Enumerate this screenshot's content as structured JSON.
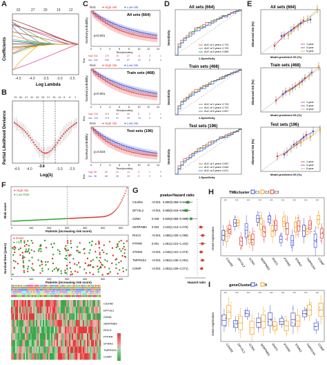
{
  "panel_labels": [
    "A",
    "B",
    "C",
    "D",
    "E",
    "F",
    "G",
    "H",
    "I"
  ],
  "A": {
    "ylabel": "Coefficients",
    "xlabel": "Log Lambda",
    "top_ticks": [
      "62",
      "27",
      "20",
      "19",
      "12"
    ],
    "xticks": [
      "-4.5",
      "-4.0",
      "-3.5",
      "-3.0",
      "-2.5"
    ]
  },
  "B": {
    "ylabel": "Partial Likelihood Deviance",
    "xlabel": "Log(λ)",
    "top_ticks": [
      "76",
      "60",
      "47",
      "42",
      "33",
      "25",
      "21",
      "19",
      "13",
      "8",
      "5",
      "1"
    ],
    "xticks": [
      "-4.5",
      "-4.0",
      "-3.5",
      "-3.0",
      "-2.5"
    ],
    "vline_label": "-3.8"
  },
  "C": {
    "ylabel": "Survival probability",
    "xlabel": "Time(months)",
    "risk_label": "Risk",
    "legend": [
      "Risk",
      "High risk",
      "Low risk"
    ],
    "plots": [
      {
        "title": "All sets (664)",
        "p": "p<0.001",
        "table": [
          [
            "high",
            "332",
            "170",
            "76",
            "37",
            "11",
            "3",
            "1"
          ],
          [
            "low",
            "332",
            "249",
            "139",
            "57",
            "22",
            "6",
            "0"
          ]
        ]
      },
      {
        "title": "Train sets (468)",
        "p": "p<0.001",
        "table": [
          [
            "high",
            "234",
            "119",
            "53",
            "28",
            "8",
            "2",
            "1"
          ],
          [
            "low",
            "234",
            "173",
            "97",
            "39",
            "15",
            "4",
            "0"
          ]
        ]
      },
      {
        "title": "Test sets (196)",
        "p": "p=0.023",
        "table": [
          [
            "high",
            "98",
            "60",
            "31",
            "13",
            "5",
            "1",
            "0"
          ],
          [
            "low",
            "98",
            "68",
            "35",
            "19",
            "5",
            "2",
            "0"
          ]
        ]
      }
    ],
    "xticks": [
      "0",
      "2",
      "4",
      "6",
      "8",
      "10",
      "12",
      "14"
    ]
  },
  "D": {
    "ylabel": "Sensitivity",
    "xlabel": "1-Specificity",
    "plots": [
      {
        "title": "All sets (664)",
        "auc": [
          "AUC at 1 years: 0.714",
          "AUC at 3 years: 0.703",
          "AUC at 5 years: 0.689"
        ]
      },
      {
        "title": "Train sets (468)",
        "auc": [
          "AUC at 1 years: 0.734",
          "AUC at 3 years: 0.722",
          "AUC at 5 years: 0.697"
        ]
      },
      {
        "title": "Test sets (196)",
        "auc": [
          "AUC at 1 years: 0.657",
          "AUC at 3 years: 0.649",
          "AUC at 5 years: 0.671"
        ]
      }
    ]
  },
  "E": {
    "ylabel": "Observed OS (%)",
    "xlabel": "Model-predicted OS (%)",
    "plots": [
      {
        "title": "All sets (664)",
        "legend": [
          "1-year",
          "3-year",
          "5-year"
        ]
      },
      {
        "title": "Train sets (468)",
        "legend": [
          "1-year",
          "3-year",
          "5-year"
        ]
      },
      {
        "title": "Test sets (196)",
        "legend": [
          "1-year",
          "3-year",
          "5-year"
        ]
      }
    ]
  },
  "F": {
    "risk": {
      "ylabel": "Risk score",
      "xlabel": "Patients (increasing risk score)",
      "legend": [
        "High risk",
        "Low Risk"
      ],
      "xticks": [
        "0",
        "100",
        "200",
        "300",
        "400",
        "500",
        "600"
      ]
    },
    "surv": {
      "ylabel": "Survival time (years)",
      "xlabel": "Patients (increasing risk score)",
      "legend": [
        "Dead",
        "Alive"
      ],
      "xticks": [
        "0",
        "100",
        "200",
        "300",
        "400",
        "500",
        "600"
      ]
    },
    "genes": [
      "C3orf82",
      "DPYSL2",
      "GZMA",
      "SERPINB3",
      "RHCG",
      "PTPRR",
      "STMN3",
      "TMPRSS4",
      "COMP"
    ]
  },
  "G": {
    "header": [
      "pvalue",
      "Hazard ratio"
    ],
    "rows": [
      {
        "gene": "C3orf82",
        "p": "<0.001",
        "hr": "0.890(0.859~0.943)"
      },
      {
        "gene": "DPYSL2",
        "p": "<0.001",
        "hr": "0.865(0.816~0.917)"
      },
      {
        "gene": "GZMA",
        "p": "0.048",
        "hr": "0.925(0.859~0.999)"
      },
      {
        "gene": "SERPINB3",
        "p": "0.004",
        "hr": "1.043(1.013~1.076)"
      },
      {
        "gene": "RHCG",
        "p": "<0.001",
        "hr": "1.065(1.029~1.096)"
      },
      {
        "gene": "PTPRR",
        "p": "0.001",
        "hr": "1.061(1.021~1.102)"
      },
      {
        "gene": "STMN3",
        "p": "<0.001",
        "hr": "1.046(1.021~1.073)"
      },
      {
        "gene": "TMPRSS4",
        "p": "<0.001",
        "hr": "1.062(1.035~1.091)"
      },
      {
        "gene": "COMP",
        "p": "<0.001",
        "hr": "1.053(1.029~1.071)"
      }
    ],
    "xlabel": "Hazard ratio"
  },
  "H": {
    "title": "TMEcluster",
    "groups": [
      "C1",
      "C2",
      "C3"
    ],
    "ylabel": "Gene expression",
    "sig": "***"
  },
  "I": {
    "title": "geneCluster",
    "groups": [
      "A",
      "B"
    ],
    "ylabel": "Gene expression",
    "sig": "***"
  },
  "colors": {
    "red": "#e3342f",
    "blue": "#3b4fd6",
    "green": "#2ca02c",
    "orange": "#f39c12",
    "pink": "#e377c2",
    "grey": "#888888"
  }
}
